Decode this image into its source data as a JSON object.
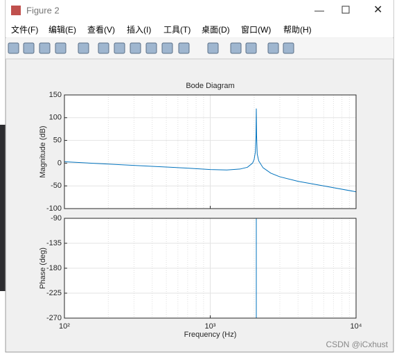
{
  "window": {
    "title": "Figure 2",
    "menus": [
      "文件(F)",
      "编辑(E)",
      "查看(V)",
      "插入(I)",
      "工具(T)",
      "桌面(D)",
      "窗口(W)",
      "帮助(H)"
    ],
    "watermark": "CSDN @iCxhust"
  },
  "chart_data": [
    {
      "type": "line",
      "title": "Bode Diagram",
      "ylabel": "Magnitude (dB)",
      "xscale": "log",
      "grid": true,
      "color": "#0072bd",
      "x": [
        100,
        200,
        400,
        700,
        1000,
        1300,
        1600,
        1800,
        1950,
        2000,
        2040,
        2060,
        2070,
        2080,
        2100,
        2150,
        2300,
        2600,
        3000,
        4000,
        6000,
        10000
      ],
      "values": [
        3,
        -2,
        -7,
        -11,
        -14,
        -15,
        -13,
        -9,
        0,
        8,
        25,
        60,
        120,
        60,
        20,
        5,
        -10,
        -22,
        -30,
        -40,
        -50,
        -63
      ],
      "xlim": [
        100,
        10000
      ],
      "xticks": [
        100,
        1000,
        10000
      ],
      "ylim": [
        -100,
        150
      ],
      "yticks": [
        -100,
        -50,
        0,
        50,
        100,
        150
      ]
    },
    {
      "type": "line",
      "ylabel": "Phase (deg)",
      "xlabel": "Frequency  (Hz)",
      "xscale": "log",
      "grid": true,
      "color": "#0072bd",
      "x": [
        100,
        2070,
        2070,
        10000
      ],
      "values": [
        -90,
        -90,
        -270,
        -270
      ],
      "xlim": [
        100,
        10000
      ],
      "xticks": [
        {
          "value": 100,
          "label": "10²"
        },
        {
          "value": 1000,
          "label": "10³"
        },
        {
          "value": 10000,
          "label": "10⁴"
        }
      ],
      "ylim": [
        -270,
        -90
      ],
      "yticks": [
        -270,
        -225,
        -180,
        -135,
        -90
      ]
    }
  ]
}
